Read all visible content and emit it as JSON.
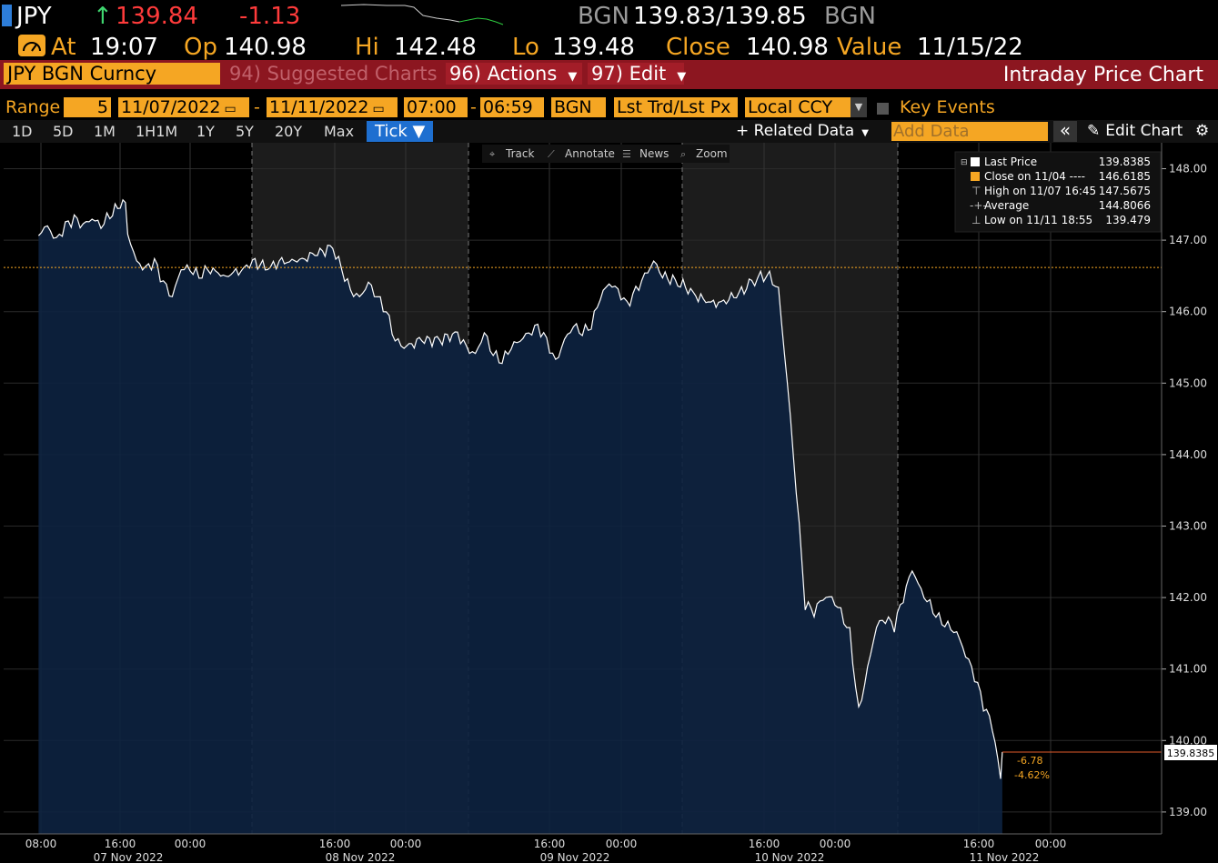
{
  "header": {
    "ticker": "JPY",
    "arrow": "↑",
    "last": "139.84",
    "change": "-1.13",
    "source_left": "BGN",
    "bid_ask": "139.83/139.85",
    "source_right": "BGN",
    "at_label": "At",
    "time": "19:07",
    "op_label": "Op",
    "op_value": "140.98",
    "hi_label": "Hi",
    "hi_value": "142.48",
    "lo_label": "Lo",
    "lo_value": "139.48",
    "close_label": "Close",
    "close_value": "140.98",
    "value_label": "Value",
    "value_date": "11/15/22"
  },
  "menubar": {
    "security": "JPY BGN Curncy",
    "suggested": "94) Suggested Charts",
    "actions": "96) Actions",
    "edit": "97) Edit",
    "title": "Intraday Price Chart"
  },
  "range_bar": {
    "range_label": "Range",
    "days": "5",
    "start_date": "11/07/2022",
    "dash1": "-",
    "end_date": "11/11/2022",
    "start_time": "07:00",
    "dash2": "-",
    "end_time": "06:59",
    "source": "BGN",
    "field": "Lst Trd/Lst Px",
    "currency": "Local CCY",
    "key_events": "Key Events"
  },
  "period_tabs": [
    "1D",
    "5D",
    "1M",
    "1H1M",
    "1Y",
    "5Y",
    "20Y",
    "Max"
  ],
  "active_tab": "Tick ▼",
  "toolbar_right": {
    "related": "+ Related Data",
    "add_data_placeholder": "Add Data",
    "collapse": "«",
    "edit_chart": "Edit Chart"
  },
  "chart_tools": [
    "Track",
    "Annotate",
    "News",
    "Zoom"
  ],
  "legend": {
    "last_label": "Last Price",
    "last_value": "139.8385",
    "close_label": "Close on 11/04 ----",
    "close_value": "146.6185",
    "high_label": "High on 11/07 16:45",
    "high_value": "147.5675",
    "avg_label": "Average",
    "avg_value": "144.8066",
    "low_label": "Low on 11/11 18:55",
    "low_value": "139.479"
  },
  "annotations": {
    "last_tag": "139.8385",
    "chg_abs": "-6.78",
    "chg_pct": "-4.62%"
  },
  "colors": {
    "accent": "#f5a623",
    "menubar": "#8c1620",
    "area_fill": "#0d2240",
    "line": "#ffffff",
    "close_line": "#f5a623",
    "last_line": "#e05a2a",
    "shade": "#1c1c1c"
  },
  "chart_data": {
    "type": "line",
    "ylim": [
      138.75,
      148.3
    ],
    "y_ticks": [
      "148.00",
      "147.00",
      "146.00",
      "145.00",
      "144.00",
      "143.00",
      "142.00",
      "141.00",
      "140.00",
      "139.00"
    ],
    "x_hour_labels": [
      "08:00",
      "16:00",
      "00:00",
      "16:00",
      "00:00",
      "16:00",
      "00:00",
      "16:00",
      "00:00",
      "16:00",
      "00:00"
    ],
    "x_date_labels": [
      "07 Nov 2022",
      "08 Nov 2022",
      "09 Nov 2022",
      "10 Nov 2022",
      "11 Nov 2022"
    ],
    "reference_line": {
      "name": "Close on 11/04",
      "value": 146.6185
    },
    "last_price": 139.8385,
    "series": [
      {
        "name": "Last Price",
        "points": [
          [
            "11/07 07:00",
            147.1
          ],
          [
            "11/07 08:00",
            147.2
          ],
          [
            "11/07 09:00",
            147.0
          ],
          [
            "11/07 10:00",
            147.2
          ],
          [
            "11/07 11:00",
            147.3
          ],
          [
            "11/07 12:00",
            147.2
          ],
          [
            "11/07 13:00",
            147.3
          ],
          [
            "11/07 14:00",
            147.2
          ],
          [
            "11/07 15:00",
            147.35
          ],
          [
            "11/07 16:45",
            147.57
          ],
          [
            "11/07 17:00",
            147.1
          ],
          [
            "11/07 18:00",
            146.7
          ],
          [
            "11/07 19:00",
            146.6
          ],
          [
            "11/07 20:00",
            146.7
          ],
          [
            "11/07 21:00",
            146.4
          ],
          [
            "11/07 22:00",
            146.2
          ],
          [
            "11/07 23:00",
            146.6
          ],
          [
            "11/08 00:00",
            146.6
          ],
          [
            "11/08 01:00",
            146.5
          ],
          [
            "11/08 02:00",
            146.6
          ],
          [
            "11/08 04:00",
            146.5
          ],
          [
            "11/08 06:00",
            146.6
          ],
          [
            "11/08 07:00",
            146.7
          ],
          [
            "11/08 09:00",
            146.6
          ],
          [
            "11/08 10:00",
            146.7
          ],
          [
            "11/08 12:00",
            146.7
          ],
          [
            "11/08 14:00",
            146.8
          ],
          [
            "11/08 16:00",
            146.9
          ],
          [
            "11/08 17:00",
            146.6
          ],
          [
            "11/08 18:00",
            146.3
          ],
          [
            "11/08 19:00",
            146.2
          ],
          [
            "11/08 20:00",
            146.4
          ],
          [
            "11/08 21:00",
            146.2
          ],
          [
            "11/08 22:00",
            146.0
          ],
          [
            "11/08 23:00",
            145.6
          ],
          [
            "11/09 00:00",
            145.5
          ],
          [
            "11/09 02:00",
            145.6
          ],
          [
            "11/09 04:00",
            145.6
          ],
          [
            "11/09 06:00",
            145.7
          ],
          [
            "11/09 07:00",
            145.5
          ],
          [
            "11/09 08:00",
            145.4
          ],
          [
            "11/09 09:00",
            145.7
          ],
          [
            "11/09 10:00",
            145.4
          ],
          [
            "11/09 11:00",
            145.3
          ],
          [
            "11/09 12:00",
            145.5
          ],
          [
            "11/09 13:00",
            145.6
          ],
          [
            "11/09 14:00",
            145.7
          ],
          [
            "11/09 15:00",
            145.8
          ],
          [
            "11/09 16:00",
            145.6
          ],
          [
            "11/09 17:00",
            145.3
          ],
          [
            "11/09 18:00",
            145.6
          ],
          [
            "11/09 19:00",
            145.8
          ],
          [
            "11/09 20:00",
            145.7
          ],
          [
            "11/09 21:00",
            145.8
          ],
          [
            "11/09 22:00",
            146.2
          ],
          [
            "11/09 23:00",
            146.4
          ],
          [
            "11/10 00:00",
            146.3
          ],
          [
            "11/10 01:00",
            146.1
          ],
          [
            "11/10 02:00",
            146.3
          ],
          [
            "11/10 03:00",
            146.5
          ],
          [
            "11/10 04:00",
            146.7
          ],
          [
            "11/10 05:00",
            146.5
          ],
          [
            "11/10 07:00",
            146.4
          ],
          [
            "11/10 09:00",
            146.2
          ],
          [
            "11/10 11:00",
            146.1
          ],
          [
            "11/10 13:00",
            146.2
          ],
          [
            "11/10 15:00",
            146.4
          ],
          [
            "11/10 16:00",
            146.5
          ],
          [
            "11/10 17:00",
            146.5
          ],
          [
            "11/10 18:00",
            146.3
          ],
          [
            "11/10 19:00",
            145.0
          ],
          [
            "11/10 20:00",
            143.5
          ],
          [
            "11/10 21:00",
            141.9
          ],
          [
            "11/10 22:00",
            141.8
          ],
          [
            "11/10 23:00",
            142.0
          ],
          [
            "11/11 00:00",
            142.0
          ],
          [
            "11/11 01:00",
            141.8
          ],
          [
            "11/11 02:00",
            141.5
          ],
          [
            "11/11 03:00",
            140.4
          ],
          [
            "11/11 04:00",
            141.0
          ],
          [
            "11/11 05:00",
            141.6
          ],
          [
            "11/11 06:00",
            141.7
          ],
          [
            "11/11 07:00",
            141.6
          ],
          [
            "11/11 08:00",
            142.0
          ],
          [
            "11/11 09:00",
            142.4
          ],
          [
            "11/11 10:00",
            142.1
          ],
          [
            "11/11 11:00",
            141.9
          ],
          [
            "11/11 12:00",
            141.7
          ],
          [
            "11/11 13:00",
            141.6
          ],
          [
            "11/11 14:00",
            141.5
          ],
          [
            "11/11 15:00",
            141.2
          ],
          [
            "11/11 16:00",
            140.9
          ],
          [
            "11/11 17:00",
            140.5
          ],
          [
            "11/11 18:00",
            140.2
          ],
          [
            "11/11 18:55",
            139.48
          ],
          [
            "11/11 19:07",
            139.84
          ]
        ]
      }
    ]
  }
}
